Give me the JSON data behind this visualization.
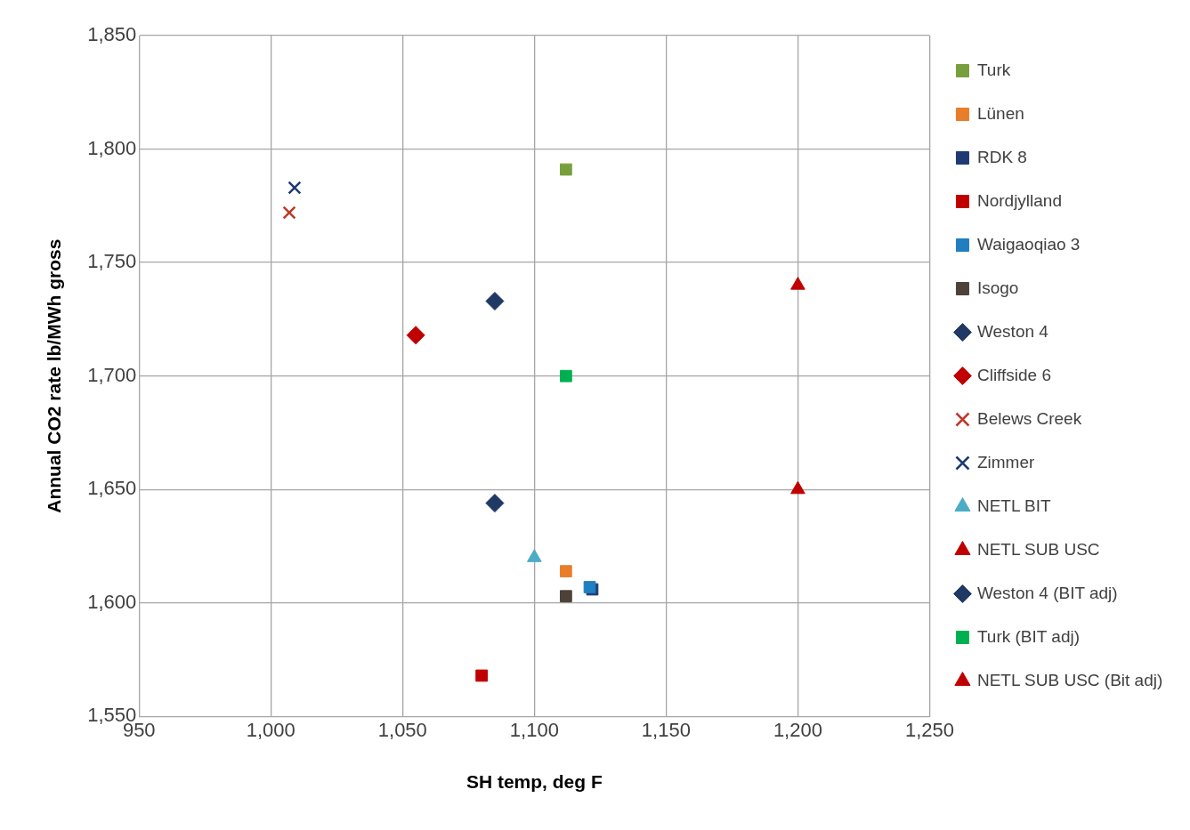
{
  "chart_data": {
    "type": "scatter",
    "xlabel": "SH temp, deg F",
    "ylabel": "Annual CO2 rate lb/MWh gross",
    "xlim": [
      950,
      1250
    ],
    "xticks": [
      {
        "value": 950,
        "label": "950"
      },
      {
        "value": 1000,
        "label": "1,000"
      },
      {
        "value": 1050,
        "label": "1,050"
      },
      {
        "value": 1100,
        "label": "1,100"
      },
      {
        "value": 1150,
        "label": "1,150"
      },
      {
        "value": 1200,
        "label": "1,200"
      },
      {
        "value": 1250,
        "label": "1,250"
      }
    ],
    "ylim": [
      1550,
      1850
    ],
    "yticks": [
      {
        "value": 1550,
        "label": "1,550"
      },
      {
        "value": 1600,
        "label": "1,600"
      },
      {
        "value": 1650,
        "label": "1,650"
      },
      {
        "value": 1700,
        "label": "1,700"
      },
      {
        "value": 1750,
        "label": "1,750"
      },
      {
        "value": 1800,
        "label": "1,800"
      },
      {
        "value": 1850,
        "label": "1,850"
      }
    ],
    "grid": true,
    "legend": "right",
    "series": [
      {
        "name": "Turk",
        "color": "#77a03c",
        "marker": "square",
        "x": [
          1112
        ],
        "values": [
          1791
        ]
      },
      {
        "name": "Lünen",
        "color": "#e97e2a",
        "marker": "square",
        "x": [
          1112
        ],
        "values": [
          1614
        ]
      },
      {
        "name": "RDK 8",
        "color": "#1f3a73",
        "marker": "square",
        "x": [
          1122
        ],
        "values": [
          1606
        ]
      },
      {
        "name": "Nordjylland",
        "color": "#c00000",
        "marker": "square",
        "x": [
          1080
        ],
        "values": [
          1568
        ]
      },
      {
        "name": "Waigaoqiao 3",
        "color": "#1f7fc0",
        "marker": "square",
        "x": [
          1121
        ],
        "values": [
          1607
        ]
      },
      {
        "name": "Isogo",
        "color": "#4d4237",
        "marker": "square",
        "x": [
          1112
        ],
        "values": [
          1603
        ]
      },
      {
        "name": "Weston 4",
        "color": "#1f3864",
        "marker": "diamond",
        "x": [
          1085
        ],
        "values": [
          1733
        ]
      },
      {
        "name": "Cliffside 6",
        "color": "#c00000",
        "marker": "diamond",
        "x": [
          1055
        ],
        "values": [
          1718
        ]
      },
      {
        "name": "Belews Creek",
        "color": "#c0392b",
        "marker": "cross",
        "x": [
          1007
        ],
        "values": [
          1772
        ]
      },
      {
        "name": "Zimmer",
        "color": "#1f3a73",
        "marker": "cross",
        "x": [
          1009
        ],
        "values": [
          1783
        ]
      },
      {
        "name": "NETL BIT",
        "color": "#4bacc6",
        "marker": "triangle",
        "x": [
          1100
        ],
        "values": [
          1620
        ]
      },
      {
        "name": "NETL SUB USC",
        "color": "#c00000",
        "marker": "triangle",
        "x": [
          1200
        ],
        "values": [
          1740
        ]
      },
      {
        "name": "Weston 4 (BIT adj)",
        "color": "#1f3864",
        "marker": "diamond",
        "x": [
          1085
        ],
        "values": [
          1644
        ]
      },
      {
        "name": "Turk (BIT adj)",
        "color": "#00b050",
        "marker": "square",
        "x": [
          1112
        ],
        "values": [
          1700
        ]
      },
      {
        "name": "NETL SUB USC (Bit adj)",
        "color": "#c00000",
        "marker": "triangle",
        "x": [
          1200
        ],
        "values": [
          1650
        ]
      }
    ]
  }
}
